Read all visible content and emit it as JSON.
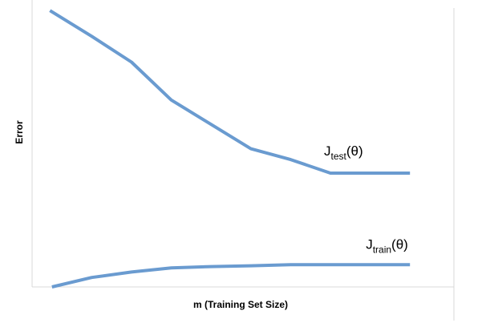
{
  "chart_data": {
    "type": "line",
    "title": "",
    "xlabel": "m (Training Set Size)",
    "ylabel": "Error",
    "grid": false,
    "legend": "none",
    "xlim": [
      0,
      10
    ],
    "ylim": [
      0,
      10
    ],
    "series": [
      {
        "name": "Jtest(θ)",
        "label_main": "J",
        "label_sub": "test",
        "label_tail": "(θ)",
        "color": "#6a9bd0",
        "x": [
          0.45,
          1.5,
          2.5,
          3.5,
          4.5,
          5.5,
          6.5,
          7.5,
          8.5,
          9.5
        ],
        "y": [
          10.2,
          9.25,
          8.3,
          6.9,
          6.0,
          5.1,
          4.7,
          4.2,
          4.2,
          4.2
        ]
      },
      {
        "name": "Jtrain(θ)",
        "label_main": "J",
        "label_sub": "train",
        "label_tail": "(θ)",
        "color": "#6a9bd0",
        "x": [
          0.5,
          1.5,
          2.5,
          3.5,
          4.5,
          5.5,
          6.5,
          7.5,
          8.5,
          9.5
        ],
        "y": [
          0.0,
          0.35,
          0.55,
          0.7,
          0.75,
          0.78,
          0.82,
          0.82,
          0.82,
          0.82
        ]
      }
    ]
  }
}
